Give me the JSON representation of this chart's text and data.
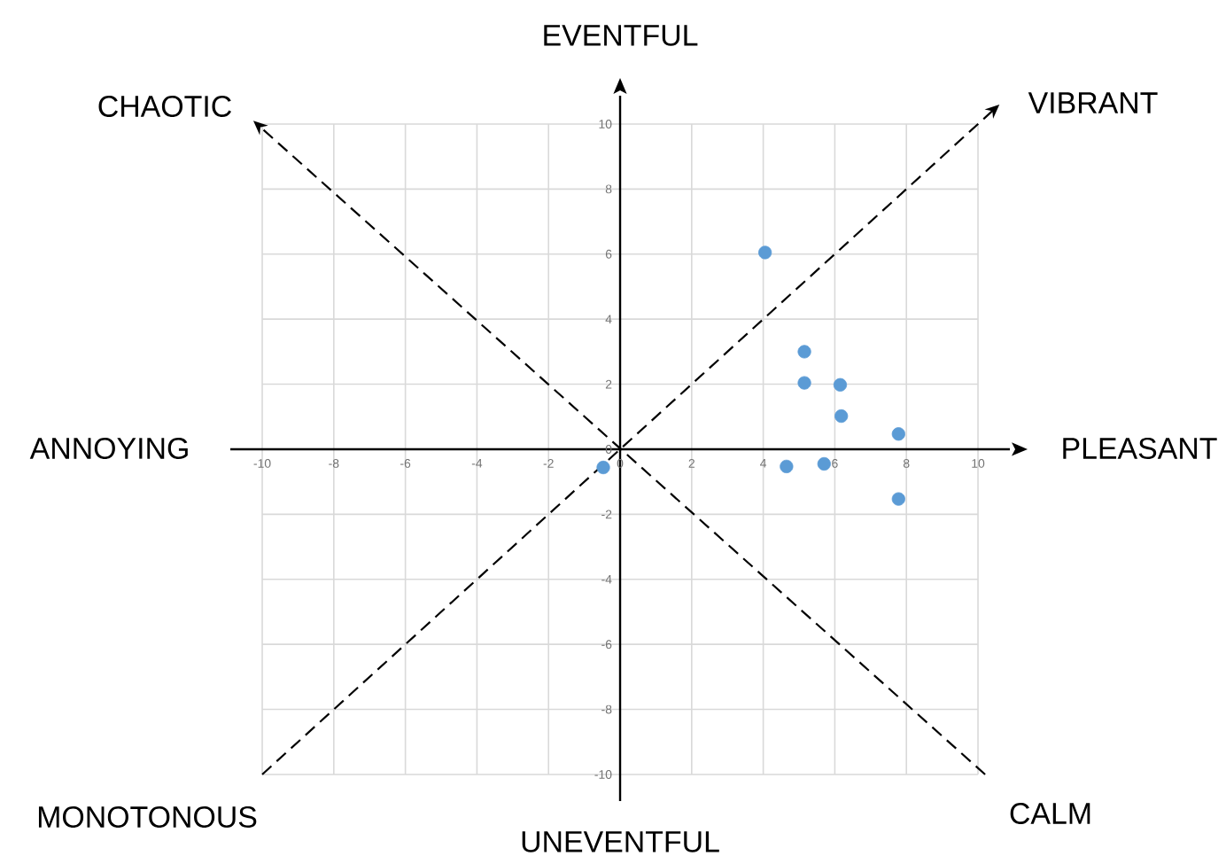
{
  "chart_data": {
    "type": "scatter",
    "x": [
      4.05,
      5.15,
      5.15,
      6.15,
      6.18,
      7.78,
      4.65,
      5.7,
      7.78,
      -0.47
    ],
    "values": [
      6.05,
      3.0,
      2.04,
      1.98,
      1.02,
      0.47,
      -0.53,
      -0.45,
      -1.53,
      -0.56
    ],
    "color": "#5b9bd5",
    "xlim": [
      -10,
      10
    ],
    "ylim": [
      -10,
      10
    ],
    "xticks": [
      -10,
      -8,
      -6,
      -4,
      -2,
      0,
      2,
      4,
      6,
      8,
      10
    ],
    "yticks": [
      -10,
      -8,
      -6,
      -4,
      -2,
      0,
      2,
      4,
      6,
      8,
      10
    ],
    "grid": true,
    "annotations": [
      "EVENTFUL",
      "UNEVENTFUL",
      "PLEASANT",
      "ANNOYING",
      "CHAOTIC",
      "VIBRANT",
      "MONOTONOUS",
      "CALM"
    ]
  }
}
